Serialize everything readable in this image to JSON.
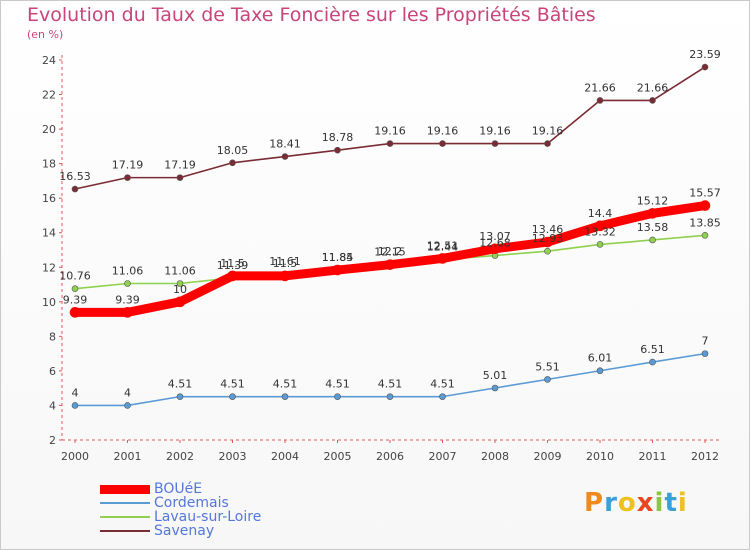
{
  "title": "Evolution du Taux de Taxe Foncière sur les Propriétés Bâties",
  "subtitle": "(en %)",
  "logo": {
    "text": "Proxiti",
    "letter_colors": [
      "#f08a1c",
      "#3aa0d8",
      "#f0c020",
      "#e8461e",
      "#8cc63e",
      "#3aa0d8",
      "#f0c020"
    ]
  },
  "chart_data": {
    "type": "line",
    "x": [
      "2000",
      "2001",
      "2002",
      "2003",
      "2004",
      "2005",
      "2006",
      "2007",
      "2008",
      "2009",
      "2010",
      "2011",
      "2012"
    ],
    "ylim": [
      2,
      24
    ],
    "yticks": [
      "2",
      "4",
      "6",
      "8",
      "10",
      "12",
      "14",
      "16",
      "18",
      "20",
      "22",
      "24"
    ],
    "grid": false,
    "legend_position": "bottom-left",
    "series": [
      {
        "name": "BOUéE",
        "color": "#ff0000",
        "values": [
          9.39,
          9.39,
          10,
          11.5,
          11.5,
          11.84,
          12.15,
          12.51,
          13.07,
          13.46,
          14.4,
          15.12,
          15.57
        ],
        "labels": [
          "9.39",
          "9.39",
          "10",
          "11.5",
          "11.5",
          "11.84",
          "12.15",
          "12.51",
          "13.07",
          "13.46",
          "14.4",
          "15.12",
          "15.57"
        ]
      },
      {
        "name": "Cordemais",
        "color": "#5b9bd5",
        "values": [
          4,
          4,
          4.51,
          4.51,
          4.51,
          4.51,
          4.51,
          4.51,
          5.01,
          5.51,
          6.01,
          6.51,
          7
        ],
        "labels": [
          "4",
          "4",
          "4.51",
          "4.51",
          "4.51",
          "4.51",
          "4.51",
          "4.51",
          "5.01",
          "5.51",
          "6.01",
          "6.51",
          "7"
        ]
      },
      {
        "name": "Lavau-sur-Loire",
        "color": "#8fd14f",
        "values": [
          10.76,
          11.06,
          11.06,
          11.39,
          11.61,
          11.85,
          12.2,
          12.44,
          12.68,
          12.93,
          13.32,
          13.58,
          13.85
        ],
        "labels": [
          "10.76",
          "11.06",
          "11.06",
          "11.39",
          "11.61",
          "11.85",
          "12.2",
          "12.44",
          "12.68",
          "12.93",
          "13.32",
          "13.58",
          "13.85"
        ]
      },
      {
        "name": "Savenay",
        "color": "#7b2b33",
        "values": [
          16.53,
          17.19,
          17.19,
          18.05,
          18.41,
          18.78,
          19.16,
          19.16,
          19.16,
          19.16,
          21.66,
          21.66,
          23.59
        ],
        "labels": [
          "16.53",
          "17.19",
          "17.19",
          "18.05",
          "18.41",
          "18.78",
          "19.16",
          "19.16",
          "19.16",
          "19.16",
          "21.66",
          "21.66",
          "23.59"
        ]
      }
    ]
  }
}
